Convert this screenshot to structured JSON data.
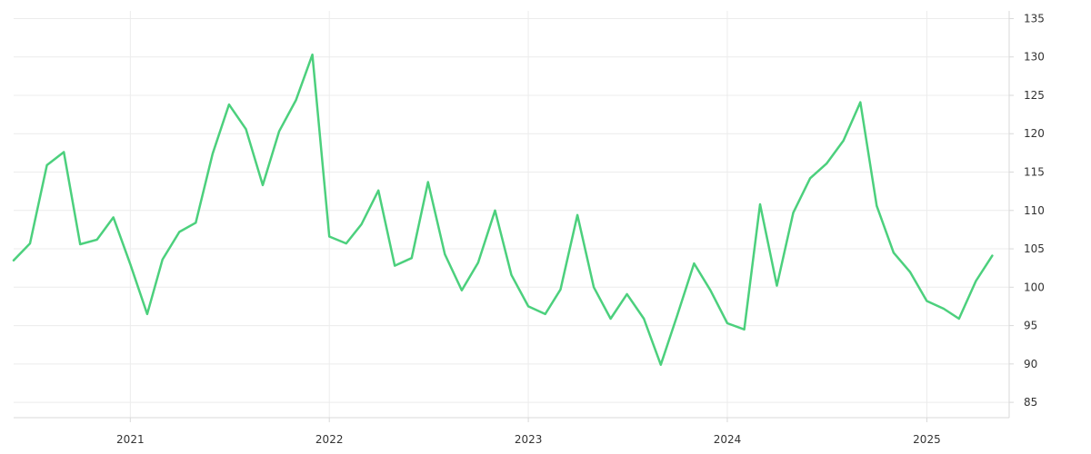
{
  "chart_data": {
    "type": "line",
    "title": "",
    "xlabel": "",
    "ylabel": "",
    "x_tick_labels": [
      "2021",
      "2022",
      "2023",
      "2024",
      "2025"
    ],
    "y_tick_labels": [
      "85",
      "90",
      "95",
      "100",
      "105",
      "110",
      "115",
      "120",
      "125",
      "130",
      "135"
    ],
    "x_ticks": [
      "2021-01-01",
      "2022-01-01",
      "2023-01-01",
      "2024-01-01",
      "2025-01-01"
    ],
    "y_ticks": [
      85,
      90,
      95,
      100,
      105,
      110,
      115,
      120,
      125,
      130,
      135
    ],
    "xlim": [
      "2020-06-01",
      "2025-06-01"
    ],
    "ylim": [
      83,
      136
    ],
    "y_axis_side": "right",
    "grid": true,
    "series": [
      {
        "color": "#4cd07d",
        "x": [
          "2020-06-01",
          "2020-07-01",
          "2020-08-01",
          "2020-09-01",
          "2020-10-01",
          "2020-11-01",
          "2020-12-01",
          "2021-01-01",
          "2021-02-01",
          "2021-03-01",
          "2021-04-01",
          "2021-05-01",
          "2021-06-01",
          "2021-07-01",
          "2021-08-01",
          "2021-09-01",
          "2021-10-01",
          "2021-11-01",
          "2021-12-01",
          "2022-01-01",
          "2022-02-01",
          "2022-03-01",
          "2022-04-01",
          "2022-05-01",
          "2022-06-01",
          "2022-07-01",
          "2022-08-01",
          "2022-09-01",
          "2022-10-01",
          "2022-11-01",
          "2022-12-01",
          "2023-01-01",
          "2023-02-01",
          "2023-03-01",
          "2023-04-01",
          "2023-05-01",
          "2023-06-01",
          "2023-07-01",
          "2023-08-01",
          "2023-09-01",
          "2023-10-01",
          "2023-11-01",
          "2023-12-01",
          "2024-01-01",
          "2024-02-01",
          "2024-03-01",
          "2024-04-01",
          "2024-05-01",
          "2024-06-01",
          "2024-07-01",
          "2024-08-01",
          "2024-09-01",
          "2024-10-01",
          "2024-11-01",
          "2024-12-01",
          "2025-01-01",
          "2025-02-01",
          "2025-03-01",
          "2025-04-01",
          "2025-05-01"
        ],
        "y": [
          103.5,
          105.7,
          115.9,
          117.6,
          105.6,
          106.2,
          109.1,
          103.0,
          96.5,
          103.6,
          107.2,
          108.4,
          117.4,
          123.8,
          120.6,
          113.3,
          120.3,
          124.4,
          130.3,
          106.6,
          105.7,
          108.2,
          112.6,
          102.8,
          103.8,
          113.7,
          104.3,
          99.6,
          103.2,
          110.0,
          101.6,
          97.5,
          96.5,
          99.7,
          109.4,
          100.0,
          95.9,
          99.1,
          95.9,
          89.9,
          96.3,
          103.1,
          99.6,
          95.3,
          94.5,
          110.8,
          100.2,
          109.7,
          114.2,
          116.1,
          119.1,
          124.1,
          110.6,
          104.5,
          102.0,
          98.2,
          97.2,
          95.9,
          100.8,
          104.1
        ]
      }
    ]
  }
}
